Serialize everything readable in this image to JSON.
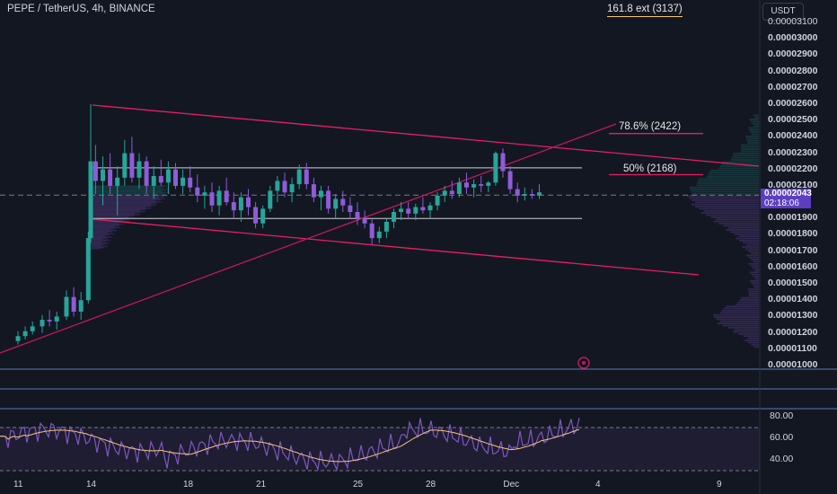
{
  "header": {
    "symbol": "PEPE / TetherUS, 4h, BINANCE",
    "ext_label": "161.8 ext (3137)",
    "currency": "USDT"
  },
  "price_axis": {
    "ticks": [
      "0.00003100",
      "0.00003000",
      "0.00002900",
      "0.00002800",
      "0.00002700",
      "0.00002600",
      "0.00002500",
      "0.00002400",
      "0.00002300",
      "0.00002200",
      "0.00002100",
      "0.00001900",
      "0.00001800",
      "0.00001700",
      "0.00001600",
      "0.00001500",
      "0.00001400",
      "0.00001300",
      "0.00001200",
      "0.00001100",
      "0.00001000"
    ],
    "last_price": "0.00002043",
    "countdown": "02:18:06"
  },
  "rsi_axis": {
    "ticks": [
      "80.00",
      "60.00",
      "40.00"
    ]
  },
  "time_axis": {
    "ticks": [
      "11",
      "14",
      "18",
      "21",
      "25",
      "28",
      "Dec",
      "4",
      "9"
    ]
  },
  "fib_labels": {
    "f786": "78.6% (2422)",
    "f50": "50% (2168)"
  },
  "colors": {
    "up": "#26a69a",
    "down": "#8e5cd9",
    "pink": "#e91e63",
    "wedge": "#c2185b",
    "rsi": "#7e57c2",
    "rsi_ma": "#f7c57a"
  },
  "chart_data": {
    "type": "candlestick",
    "ylim": [
      1e-05,
      3.13e-05
    ],
    "levels": {
      "range_top": 2.21e-05,
      "range_bottom": 1.9e-05,
      "mid": 2.043e-05,
      "fib_786": 2.42e-05,
      "fib_50": 2.168e-05
    },
    "candles": [
      [
        11.0,
        1.15e-05,
        1.21e-05,
        1.13e-05,
        1.18e-05
      ],
      [
        11.3,
        1.18e-05,
        1.24e-05,
        1.16e-05,
        1.21e-05
      ],
      [
        11.6,
        1.21e-05,
        1.27e-05,
        1.19e-05,
        1.24e-05
      ],
      [
        12.0,
        1.24e-05,
        1.31e-05,
        1.2e-05,
        1.28e-05
      ],
      [
        12.3,
        1.28e-05,
        1.34e-05,
        1.24e-05,
        1.27e-05
      ],
      [
        12.6,
        1.27e-05,
        1.33e-05,
        1.22e-05,
        1.3e-05
      ],
      [
        13.0,
        1.3e-05,
        1.46e-05,
        1.28e-05,
        1.42e-05
      ],
      [
        13.3,
        1.42e-05,
        1.48e-05,
        1.3e-05,
        1.33e-05
      ],
      [
        13.6,
        1.33e-05,
        1.45e-05,
        1.28e-05,
        1.4e-05
      ],
      [
        13.9,
        1.4e-05,
        1.82e-05,
        1.38e-05,
        1.78e-05
      ],
      [
        14.0,
        1.78e-05,
        2.6e-05,
        1.75e-05,
        2.25e-05
      ],
      [
        14.2,
        2.25e-05,
        2.35e-05,
        2.05e-05,
        2.13e-05
      ],
      [
        14.5,
        2.13e-05,
        2.28e-05,
        1.98e-05,
        2.2e-05
      ],
      [
        14.8,
        2.2e-05,
        2.3e-05,
        2.05e-05,
        2.1e-05
      ],
      [
        15.1,
        2.1e-05,
        2.22e-05,
        1.92e-05,
        2.15e-05
      ],
      [
        15.4,
        2.15e-05,
        2.38e-05,
        2.1e-05,
        2.3e-05
      ],
      [
        15.7,
        2.3e-05,
        2.4e-05,
        2.12e-05,
        2.15e-05
      ],
      [
        16.0,
        2.15e-05,
        2.3e-05,
        2.08e-05,
        2.25e-05
      ],
      [
        16.3,
        2.25e-05,
        2.28e-05,
        2.05e-05,
        2.1e-05
      ],
      [
        16.6,
        2.1e-05,
        2.22e-05,
        2.02e-05,
        2.16e-05
      ],
      [
        16.9,
        2.16e-05,
        2.26e-05,
        2.1e-05,
        2.12e-05
      ],
      [
        17.2,
        2.12e-05,
        2.25e-05,
        2.05e-05,
        2.2e-05
      ],
      [
        17.5,
        2.2e-05,
        2.24e-05,
        2.08e-05,
        2.1e-05
      ],
      [
        17.8,
        2.1e-05,
        2.2e-05,
        2.05e-05,
        2.15e-05
      ],
      [
        18.1,
        2.15e-05,
        2.22e-05,
        2.06e-05,
        2.09e-05
      ],
      [
        18.4,
        2.09e-05,
        2.17e-05,
        2e-05,
        2.04e-05
      ],
      [
        18.7,
        2.04e-05,
        2.1e-05,
        1.96e-05,
        2.06e-05
      ],
      [
        19.0,
        2.06e-05,
        2.12e-05,
        1.94e-05,
        1.98e-05
      ],
      [
        19.3,
        1.98e-05,
        2.1e-05,
        1.92e-05,
        2.07e-05
      ],
      [
        19.6,
        2.07e-05,
        2.15e-05,
        1.98e-05,
        2e-05
      ],
      [
        19.9,
        2e-05,
        2.06e-05,
        1.9e-05,
        1.95e-05
      ],
      [
        20.2,
        1.95e-05,
        2.06e-05,
        1.88e-05,
        2.03e-05
      ],
      [
        20.5,
        2.03e-05,
        2.08e-05,
        1.92e-05,
        1.97e-05
      ],
      [
        20.8,
        1.97e-05,
        2e-05,
        1.84e-05,
        1.87e-05
      ],
      [
        21.1,
        1.87e-05,
        1.98e-05,
        1.84e-05,
        1.96e-05
      ],
      [
        21.4,
        1.96e-05,
        2.1e-05,
        1.94e-05,
        2.07e-05
      ],
      [
        21.7,
        2.07e-05,
        2.16e-05,
        2e-05,
        2.13e-05
      ],
      [
        22.0,
        2.13e-05,
        2.18e-05,
        2.03e-05,
        2.06e-05
      ],
      [
        22.3,
        2.06e-05,
        2.15e-05,
        2e-05,
        2.11e-05
      ],
      [
        22.6,
        2.11e-05,
        2.23e-05,
        2.08e-05,
        2.2e-05
      ],
      [
        22.9,
        2.2e-05,
        2.24e-05,
        2.08e-05,
        2.11e-05
      ],
      [
        23.2,
        2.11e-05,
        2.15e-05,
        2e-05,
        2.03e-05
      ],
      [
        23.5,
        2.03e-05,
        2.1e-05,
        1.95e-05,
        2.07e-05
      ],
      [
        23.8,
        2.07e-05,
        2.1e-05,
        1.93e-05,
        1.96e-05
      ],
      [
        24.1,
        1.96e-05,
        2.05e-05,
        1.9e-05,
        2.02e-05
      ],
      [
        24.4,
        2.02e-05,
        2.07e-05,
        1.94e-05,
        1.98e-05
      ],
      [
        24.7,
        1.98e-05,
        2.03e-05,
        1.9e-05,
        1.94e-05
      ],
      [
        25.0,
        1.94e-05,
        2e-05,
        1.86e-05,
        1.9e-05
      ],
      [
        25.3,
        1.9e-05,
        1.95e-05,
        1.84e-05,
        1.87e-05
      ],
      [
        25.6,
        1.87e-05,
        1.9e-05,
        1.74e-05,
        1.78e-05
      ],
      [
        25.9,
        1.78e-05,
        1.85e-05,
        1.75e-05,
        1.82e-05
      ],
      [
        26.2,
        1.82e-05,
        1.9e-05,
        1.78e-05,
        1.88e-05
      ],
      [
        26.5,
        1.88e-05,
        1.96e-05,
        1.84e-05,
        1.94e-05
      ],
      [
        26.8,
        1.94e-05,
        2e-05,
        1.89e-05,
        1.96e-05
      ],
      [
        27.1,
        1.96e-05,
        2e-05,
        1.9e-05,
        1.93e-05
      ],
      [
        27.4,
        1.93e-05,
        1.99e-05,
        1.89e-05,
        1.97e-05
      ],
      [
        27.7,
        1.97e-05,
        2.03e-05,
        1.93e-05,
        1.95e-05
      ],
      [
        28.0,
        1.95e-05,
        2e-05,
        1.9e-05,
        1.98e-05
      ],
      [
        28.3,
        1.98e-05,
        2.06e-05,
        1.95e-05,
        2.04e-05
      ],
      [
        28.6,
        2.04e-05,
        2.1e-05,
        2e-05,
        2.07e-05
      ],
      [
        28.9,
        2.07e-05,
        2.13e-05,
        2.02e-05,
        2.05e-05
      ],
      [
        29.2,
        2.05e-05,
        2.15e-05,
        2.03e-05,
        2.12e-05
      ],
      [
        29.5,
        2.12e-05,
        2.18e-05,
        2.05e-05,
        2.09e-05
      ],
      [
        29.8,
        2.09e-05,
        2.14e-05,
        2.03e-05,
        2.11e-05
      ],
      [
        30.1,
        2.11e-05,
        2.16e-05,
        2.06e-05,
        2.1e-05
      ],
      [
        30.4,
        2.1e-05,
        2.13e-05,
        2.06e-05,
        2.12e-05
      ],
      [
        30.7,
        2.12e-05,
        2.31e-05,
        2.1e-05,
        2.3e-05
      ],
      [
        31.0,
        2.3e-05,
        2.33e-05,
        2.15e-05,
        2.19e-05
      ],
      [
        31.3,
        2.19e-05,
        2.22e-05,
        2.05e-05,
        2.08e-05
      ],
      [
        31.6,
        2.08e-05,
        2.12e-05,
        2e-05,
        2.04e-05
      ],
      [
        31.9,
        2.04e-05,
        2.09e-05,
        2.01e-05,
        2.05e-05
      ],
      [
        32.2,
        2.05e-05,
        2.08e-05,
        2.02e-05,
        2.04e-05
      ],
      [
        32.5,
        2.04e-05,
        2.11e-05,
        2.02e-05,
        2.06e-05
      ]
    ]
  }
}
